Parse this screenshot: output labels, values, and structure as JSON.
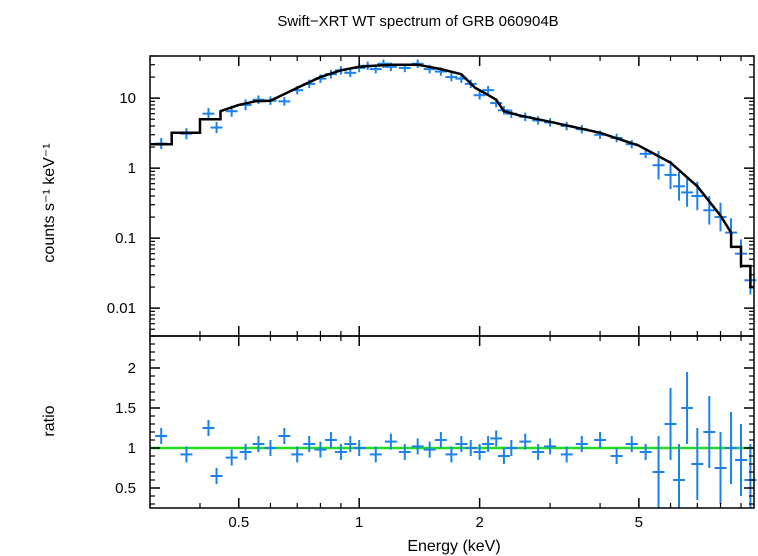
{
  "chart_data": [
    {
      "type": "scatter",
      "panel": "spectrum",
      "title": "Swift−XRT WT spectrum of GRB 060904B",
      "xlabel": "Energy (keV)",
      "ylabel": "counts s⁻¹ keV⁻¹",
      "xscale": "log",
      "yscale": "log",
      "xlim": [
        0.3,
        9.7
      ],
      "ylim": [
        0.004,
        40
      ],
      "yticks": [
        {
          "v": 10,
          "label": "10"
        },
        {
          "v": 1,
          "label": "1"
        },
        {
          "v": 0.1,
          "label": "0.1"
        },
        {
          "v": 0.01,
          "label": "0.01"
        }
      ],
      "colors": {
        "data": "#1a82ea",
        "model": "#000000"
      },
      "model": [
        [
          0.3,
          2.2
        ],
        [
          0.34,
          2.2
        ],
        [
          0.34,
          3.2
        ],
        [
          0.4,
          3.2
        ],
        [
          0.4,
          5
        ],
        [
          0.45,
          5
        ],
        [
          0.45,
          6.5
        ],
        [
          0.5,
          8
        ],
        [
          0.55,
          9
        ],
        [
          0.6,
          9.2
        ],
        [
          0.7,
          14
        ],
        [
          0.8,
          20
        ],
        [
          0.9,
          25
        ],
        [
          1.0,
          28
        ],
        [
          1.2,
          30
        ],
        [
          1.4,
          30
        ],
        [
          1.6,
          26
        ],
        [
          1.8,
          22
        ],
        [
          1.95,
          14
        ],
        [
          2.05,
          12
        ],
        [
          2.2,
          9.5
        ],
        [
          2.3,
          6.5
        ],
        [
          2.5,
          5.7
        ],
        [
          3,
          4.6
        ],
        [
          4,
          3.2
        ],
        [
          5,
          2.1
        ],
        [
          6,
          1.2
        ],
        [
          7,
          0.55
        ],
        [
          8,
          0.21
        ],
        [
          8.5,
          0.12
        ],
        [
          8.5,
          0.075
        ],
        [
          9,
          0.075
        ],
        [
          9,
          0.04
        ],
        [
          9.5,
          0.04
        ],
        [
          9.5,
          0.02
        ],
        [
          9.7,
          0.02
        ]
      ],
      "points": [
        [
          0.32,
          2.25
        ],
        [
          0.37,
          3.1
        ],
        [
          0.42,
          6.0
        ],
        [
          0.44,
          3.8
        ],
        [
          0.48,
          6.5
        ],
        [
          0.52,
          8.0
        ],
        [
          0.56,
          9.5
        ],
        [
          0.6,
          9.2
        ],
        [
          0.65,
          9.0
        ],
        [
          0.7,
          13
        ],
        [
          0.75,
          16
        ],
        [
          0.8,
          19
        ],
        [
          0.85,
          22
        ],
        [
          0.9,
          25
        ],
        [
          0.95,
          23
        ],
        [
          1.0,
          27
        ],
        [
          1.05,
          29
        ],
        [
          1.1,
          26
        ],
        [
          1.15,
          31
        ],
        [
          1.2,
          28
        ],
        [
          1.3,
          27
        ],
        [
          1.4,
          31
        ],
        [
          1.5,
          26
        ],
        [
          1.6,
          24
        ],
        [
          1.7,
          20
        ],
        [
          1.8,
          19
        ],
        [
          1.9,
          16
        ],
        [
          2.0,
          11
        ],
        [
          2.1,
          13
        ],
        [
          2.2,
          8.5
        ],
        [
          2.3,
          6.7
        ],
        [
          2.4,
          6.0
        ],
        [
          2.6,
          5.4
        ],
        [
          2.8,
          4.8
        ],
        [
          3.0,
          4.5
        ],
        [
          3.3,
          4.0
        ],
        [
          3.6,
          3.6
        ],
        [
          4.0,
          3.0
        ],
        [
          4.4,
          2.7
        ],
        [
          4.8,
          2.2
        ],
        [
          5.2,
          1.6
        ],
        [
          5.6,
          1.1
        ],
        [
          6.0,
          0.8
        ],
        [
          6.3,
          0.55
        ],
        [
          6.6,
          0.45
        ],
        [
          7.0,
          0.4
        ],
        [
          7.5,
          0.25
        ],
        [
          8.0,
          0.2
        ],
        [
          8.5,
          0.12
        ],
        [
          9.0,
          0.06
        ],
        [
          9.5,
          0.025
        ]
      ]
    },
    {
      "type": "scatter",
      "panel": "ratio",
      "xlabel": "Energy (keV)",
      "ylabel": "ratio",
      "xscale": "log",
      "xlim": [
        0.3,
        9.7
      ],
      "ylim": [
        0.25,
        2.4
      ],
      "yticks": [
        {
          "v": 2,
          "label": "2"
        },
        {
          "v": 1.5,
          "label": "1.5"
        },
        {
          "v": 1,
          "label": "1"
        },
        {
          "v": 0.5,
          "label": "0.5"
        }
      ],
      "xticks": [
        {
          "v": 0.5,
          "label": "0.5"
        },
        {
          "v": 1,
          "label": "1"
        },
        {
          "v": 2,
          "label": "2"
        },
        {
          "v": 5,
          "label": "5"
        }
      ],
      "reference_line": {
        "y": 1,
        "color": "#22dd22"
      },
      "colors": {
        "data": "#1a82ea"
      },
      "points": [
        [
          0.32,
          1.15
        ],
        [
          0.37,
          0.92
        ],
        [
          0.42,
          1.25
        ],
        [
          0.44,
          0.65
        ],
        [
          0.48,
          0.88
        ],
        [
          0.52,
          0.95
        ],
        [
          0.56,
          1.05
        ],
        [
          0.6,
          1.0
        ],
        [
          0.65,
          1.15
        ],
        [
          0.7,
          0.92
        ],
        [
          0.75,
          1.05
        ],
        [
          0.8,
          0.98
        ],
        [
          0.85,
          1.1
        ],
        [
          0.9,
          0.95
        ],
        [
          0.95,
          1.05
        ],
        [
          1.0,
          1.0
        ],
        [
          1.1,
          0.92
        ],
        [
          1.2,
          1.08
        ],
        [
          1.3,
          0.95
        ],
        [
          1.4,
          1.02
        ],
        [
          1.5,
          0.98
        ],
        [
          1.6,
          1.1
        ],
        [
          1.7,
          0.92
        ],
        [
          1.8,
          1.05
        ],
        [
          1.9,
          1.0
        ],
        [
          2.0,
          0.95
        ],
        [
          2.1,
          1.05
        ],
        [
          2.2,
          1.12
        ],
        [
          2.3,
          0.9
        ],
        [
          2.4,
          1.0
        ],
        [
          2.6,
          1.08
        ],
        [
          2.8,
          0.95
        ],
        [
          3.0,
          1.02
        ],
        [
          3.3,
          0.92
        ],
        [
          3.6,
          1.05
        ],
        [
          4.0,
          1.1
        ],
        [
          4.4,
          0.9
        ],
        [
          4.8,
          1.05
        ],
        [
          5.2,
          0.95
        ],
        [
          5.6,
          0.7
        ],
        [
          6.0,
          1.3
        ],
        [
          6.3,
          0.6
        ],
        [
          6.6,
          1.5
        ],
        [
          7.0,
          0.8
        ],
        [
          7.5,
          1.2
        ],
        [
          8.0,
          0.75
        ],
        [
          8.5,
          1.0
        ],
        [
          9.0,
          0.85
        ],
        [
          9.5,
          0.6
        ]
      ]
    }
  ]
}
